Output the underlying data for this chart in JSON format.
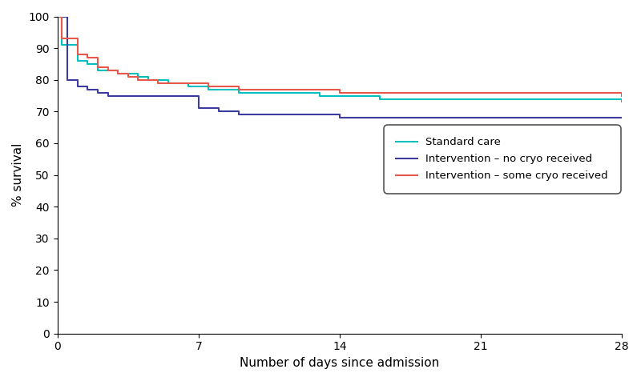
{
  "title": "",
  "xlabel": "Number of days since admission",
  "ylabel": "% survival",
  "xlim": [
    0,
    28
  ],
  "ylim": [
    0,
    100
  ],
  "xticks": [
    0,
    7,
    14,
    21,
    28
  ],
  "yticks": [
    0,
    10,
    20,
    30,
    40,
    50,
    60,
    70,
    80,
    90,
    100
  ],
  "colors": {
    "standard_care": "#00BFBF",
    "no_cryo": "#3B3BA0",
    "some_cryo": "#E8584A"
  },
  "legend_labels": [
    "Standard care",
    "Intervention – no cryo received",
    "Intervention – some cryo received"
  ],
  "standard_care": {
    "x": [
      0,
      0.2,
      0.5,
      1,
      1.5,
      2,
      2.5,
      3,
      3.5,
      4,
      4.5,
      5,
      5.5,
      6,
      6.5,
      7,
      7.5,
      8,
      9,
      10,
      11,
      12,
      13,
      14,
      15,
      16,
      17,
      18,
      19,
      20,
      21,
      22,
      23,
      24,
      25,
      26,
      27,
      28
    ],
    "y": [
      100,
      91,
      91,
      86,
      85,
      83,
      83,
      82,
      82,
      81,
      80,
      80,
      79,
      79,
      78,
      78,
      77,
      77,
      76,
      76,
      76,
      76,
      75,
      75,
      75,
      74,
      74,
      74,
      74,
      74,
      74,
      74,
      74,
      74,
      74,
      74,
      74,
      73
    ]
  },
  "no_cryo": {
    "x": [
      0,
      0.5,
      1,
      1.5,
      2,
      2.5,
      3,
      3.5,
      4,
      4.5,
      5,
      5.5,
      6,
      6.5,
      7,
      7.5,
      8,
      9,
      10,
      11,
      12,
      13,
      14,
      15,
      16,
      17,
      18,
      19,
      20,
      21,
      22,
      23,
      24,
      25,
      26,
      27,
      28
    ],
    "y": [
      100,
      80,
      78,
      77,
      76,
      75,
      75,
      75,
      75,
      75,
      75,
      75,
      75,
      75,
      71,
      71,
      70,
      69,
      69,
      69,
      69,
      69,
      68,
      68,
      68,
      68,
      68,
      68,
      68,
      68,
      68,
      68,
      68,
      68,
      68,
      68,
      68
    ]
  },
  "some_cryo": {
    "x": [
      0,
      0.2,
      0.5,
      1,
      1.5,
      2,
      2.5,
      3,
      3.5,
      4,
      4.5,
      5,
      5.5,
      6,
      6.5,
      7,
      7.5,
      8,
      9,
      10,
      11,
      12,
      13,
      14,
      15,
      16,
      17,
      18,
      19,
      20,
      21,
      22,
      23,
      24,
      25,
      26,
      27,
      28
    ],
    "y": [
      100,
      93,
      93,
      88,
      87,
      84,
      83,
      82,
      81,
      80,
      80,
      79,
      79,
      79,
      79,
      79,
      78,
      78,
      77,
      77,
      77,
      77,
      77,
      76,
      76,
      76,
      76,
      76,
      76,
      76,
      76,
      76,
      76,
      76,
      76,
      76,
      76,
      75
    ]
  },
  "linewidth": 1.5,
  "figsize": [
    8.0,
    4.76
  ],
  "dpi": 100
}
